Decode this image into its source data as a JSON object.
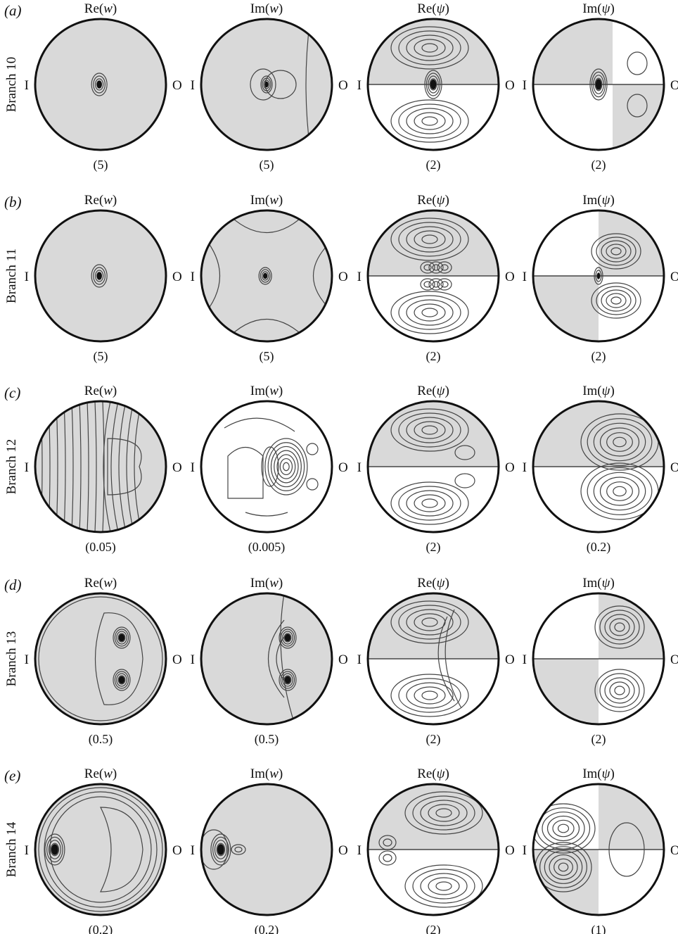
{
  "figure": {
    "column_titles": [
      "Re(w)",
      "Im(w)",
      "Re(ψ)",
      "Im(ψ)"
    ],
    "inner_label": "I",
    "outer_label": "O",
    "shading_color": "#d9d9d9",
    "rows": [
      {
        "letter": "(a)",
        "branch": "Branch 10",
        "scales": [
          "(5)",
          "(5)",
          "(2)",
          "(2)"
        ],
        "panels": [
          {
            "pattern": "small-core",
            "bg": "shaded",
            "core_x": -0.02
          },
          {
            "pattern": "core-lobe-outerwhite",
            "bg": "shaded",
            "core_x": 0.0
          },
          {
            "pattern": "psi-antisym-core",
            "bg": "split-top",
            "core_x": 0.0
          },
          {
            "pattern": "psi-im-core",
            "bg": "mixed",
            "core_x": 0.0
          }
        ]
      },
      {
        "letter": "(b)",
        "branch": "Branch 11",
        "scales": [
          "(5)",
          "(5)",
          "(2)",
          "(2)"
        ],
        "panels": [
          {
            "pattern": "small-core",
            "bg": "shaded",
            "core_x": -0.02
          },
          {
            "pattern": "cross-core",
            "bg": "shaded-cross",
            "core_x": -0.02
          },
          {
            "pattern": "psi-antisym-multi",
            "bg": "split-top",
            "core_x": -0.1
          },
          {
            "pattern": "psi-im-right",
            "bg": "split-quadrant",
            "core_x": 0.0
          }
        ]
      },
      {
        "letter": "(c)",
        "branch": "Branch 12",
        "scales": [
          "(0.05)",
          "(0.005)",
          "(2)",
          "(0.2)"
        ],
        "panels": [
          {
            "pattern": "stripes",
            "bg": "shaded",
            "core_x": 0.0
          },
          {
            "pattern": "layered-core",
            "bg": "white",
            "core_x": 0.3
          },
          {
            "pattern": "psi-antisym-right",
            "bg": "split-top",
            "core_x": 0.5
          },
          {
            "pattern": "psi-im-big",
            "bg": "split-top",
            "core_x": 0.4
          }
        ]
      },
      {
        "letter": "(d)",
        "branch": "Branch 13",
        "scales": [
          "(0.5)",
          "(0.5)",
          "(2)",
          "(2)"
        ],
        "panels": [
          {
            "pattern": "twin-cores",
            "bg": "shaded",
            "core_x": 0.3
          },
          {
            "pattern": "twin-cores-right",
            "bg": "shaded-right",
            "core_x": 0.3
          },
          {
            "pattern": "psi-antisym-diag",
            "bg": "split-top",
            "core_x": 0.2
          },
          {
            "pattern": "psi-im-diag",
            "bg": "split-quadrant",
            "core_x": 0.3
          }
        ]
      },
      {
        "letter": "(e)",
        "branch": "Branch 14",
        "scales": [
          "(0.2)",
          "(0.2)",
          "(2)",
          "(1)"
        ],
        "panels": [
          {
            "pattern": "left-core-ring",
            "bg": "shaded",
            "core_x": -0.7
          },
          {
            "pattern": "left-core",
            "bg": "shaded",
            "core_x": -0.7
          },
          {
            "pattern": "psi-antisym-left",
            "bg": "split-top",
            "core_x": -0.7
          },
          {
            "pattern": "psi-im-left",
            "bg": "split-quadrant",
            "core_x": -0.6
          }
        ]
      }
    ]
  }
}
